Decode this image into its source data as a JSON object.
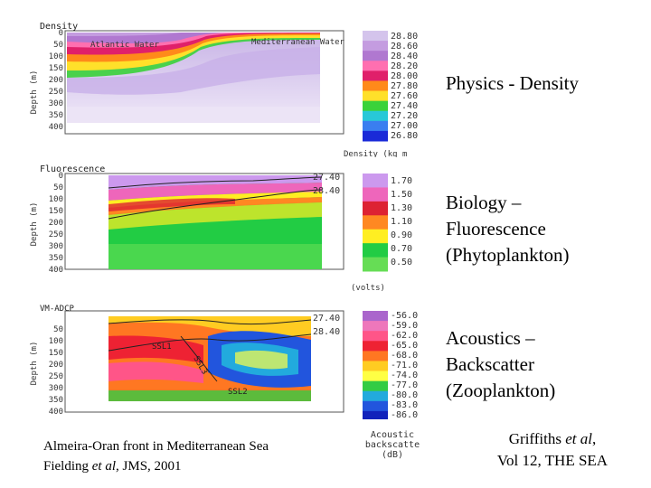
{
  "panels": [
    {
      "title": "Density",
      "ylabel": "Depth (m)",
      "ticks": [
        "0",
        "50",
        "100",
        "150",
        "200",
        "250",
        "300",
        "350",
        "400"
      ],
      "annotations": [
        "Atlantic Water",
        "Mediterranean Water"
      ],
      "scale": [
        "28.80",
        "28.60",
        "28.40",
        "28.20",
        "28.00",
        "27.80",
        "27.60",
        "27.40",
        "27.20",
        "27.00",
        "26.80"
      ],
      "units": "Density (kg m",
      "contours": []
    },
    {
      "title": "Fluorescence",
      "ylabel": "Depth (m)",
      "ticks": [
        "0",
        "50",
        "100",
        "150",
        "200",
        "250",
        "300",
        "350",
        "400"
      ],
      "annotations": [],
      "scale": [
        "1.70",
        "1.50",
        "1.30",
        "1.10",
        "0.90",
        "0.70",
        "0.50"
      ],
      "units": "(volts)",
      "contours": [
        "27.40",
        "28.40"
      ]
    },
    {
      "title": "VM-ADCP",
      "ylabel": "Depth (m)",
      "ticks": [
        "50",
        "100",
        "150",
        "200",
        "250",
        "300",
        "350",
        "400"
      ],
      "annotations": [
        "SSL1",
        "SSL3",
        "SSL2"
      ],
      "scale": [
        "-56.0",
        "-59.0",
        "-62.0",
        "-65.0",
        "-68.0",
        "-71.0",
        "-74.0",
        "-77.0",
        "-80.0",
        "-83.0",
        "-86.0"
      ],
      "units_line1": "Acoustic",
      "units_line2": "backscatte",
      "units_line3": "(dB)",
      "contours": [
        "27.40",
        "28.40"
      ]
    }
  ],
  "labels": {
    "physics": "Physics - Density",
    "biology_l1": "Biology –",
    "biology_l2": "Fluorescence",
    "biology_l3": "(Phytoplankton)",
    "acoustics_l1": "Acoustics –",
    "acoustics_l2": "Backscatter",
    "acoustics_l3": "(Zooplankton)"
  },
  "captions": {
    "front": "Almeira-Oran front in Mediterranean Sea",
    "fielding_pre": "Fielding ",
    "fielding_em": "et al",
    "fielding_post": ", JMS, 2001",
    "griffiths_pre": "Griffiths ",
    "griffiths_em": "et al",
    "griffiths_post": ",",
    "griffiths_l2": "Vol 12, THE SEA"
  },
  "colors": {
    "density_scale": [
      "#d4c4ec",
      "#c49ce0",
      "#b078d0",
      "#ff6fb0",
      "#e0206a",
      "#ff8a1a",
      "#ffe02a",
      "#3ad23a",
      "#28c8d8",
      "#3a7ef0",
      "#1a2ad8"
    ],
    "fluor_scale": [
      "#cc99ee",
      "#ee66bb",
      "#dd2233",
      "#ff8822",
      "#ffee22",
      "#22cc44",
      "#66dd55"
    ],
    "acoustic_scale": [
      "#aa66cc",
      "#ee77bb",
      "#ff5588",
      "#ee2233",
      "#ff7722",
      "#ffcc22",
      "#ffff44",
      "#33cc44",
      "#22aadd",
      "#2255dd",
      "#1122bb"
    ]
  }
}
